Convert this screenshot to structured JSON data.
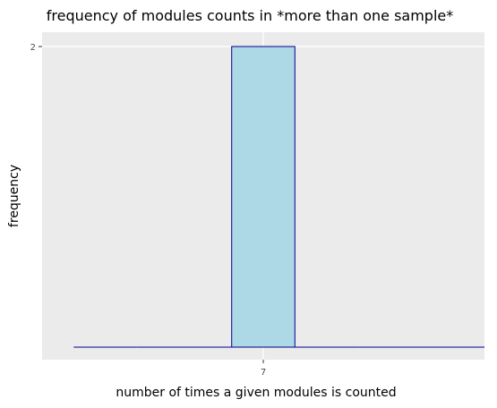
{
  "chart_data": {
    "type": "bar",
    "title": "frequency of modules counts in *more than one sample*",
    "xlabel": "number of times a given modules is counted",
    "ylabel": "frequency",
    "x_ticks": [
      "7"
    ],
    "y_ticks": [
      "2"
    ],
    "bins": [
      {
        "x_start": 4,
        "x_end": 5,
        "value": 0
      },
      {
        "x_start": 5,
        "x_end": 6,
        "value": 0
      },
      {
        "x_start": 6,
        "x_end": 7,
        "value": 0
      },
      {
        "x_start": 6.5,
        "x_end": 7.5,
        "value": 2
      },
      {
        "x_start": 7.5,
        "x_end": 8.5,
        "value": 0
      },
      {
        "x_start": 8.5,
        "x_end": 9.5,
        "value": 0
      },
      {
        "x_start": 9.5,
        "x_end": 10.5,
        "value": 0
      }
    ],
    "xlim": [
      3.5,
      10.5
    ],
    "ylim": [
      0,
      2
    ],
    "grid": true,
    "colors": {
      "panel_background": "#ebebeb",
      "grid": "#ffffff",
      "bar_fill": "#add8e6",
      "bar_stroke": "#00008b"
    }
  }
}
